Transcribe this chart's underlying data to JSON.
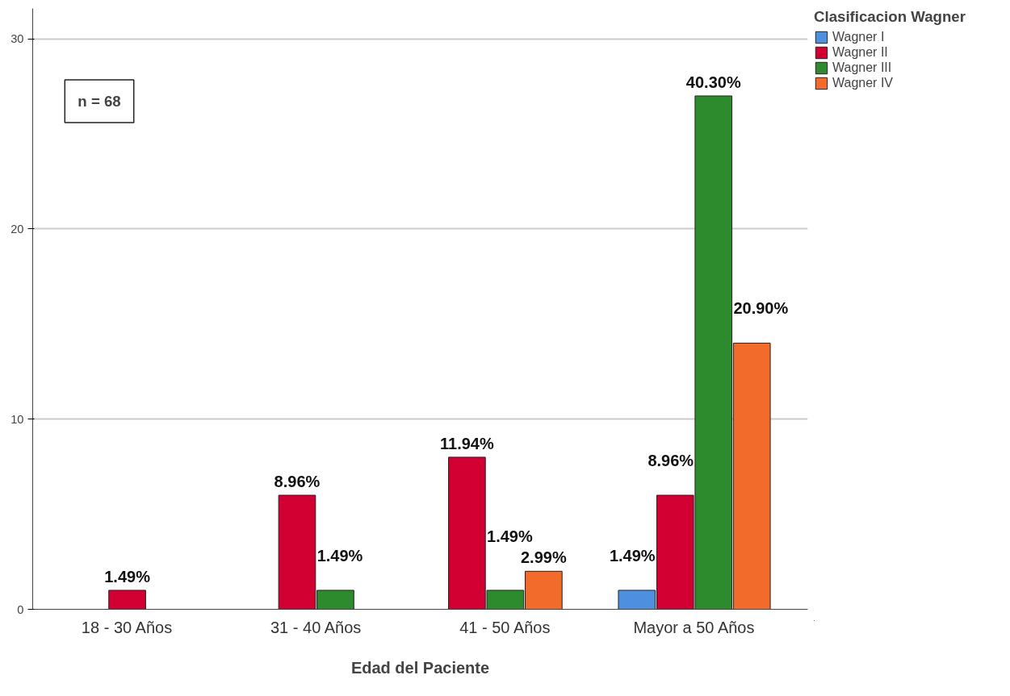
{
  "chart_data": {
    "type": "bar",
    "xlabel": "Edad del Paciente",
    "legend_title": "Clasificacion Wagner",
    "categories": [
      "18 - 30 Años",
      "31 - 40 Años",
      "41 - 50 Años",
      "Mayor a 50 Años"
    ],
    "series": [
      {
        "name": "Wagner I",
        "color": "#4f8fe0",
        "values": [
          null,
          null,
          null,
          1
        ]
      },
      {
        "name": "Wagner II",
        "color": "#d20032",
        "values": [
          1,
          6,
          8,
          6
        ]
      },
      {
        "name": "Wagner III",
        "color": "#2d8a2d",
        "values": [
          null,
          1,
          1,
          27
        ]
      },
      {
        "name": "Wagner IV",
        "color": "#f26b2a",
        "values": [
          null,
          null,
          2,
          14
        ]
      }
    ],
    "ylim": [
      0,
      31.6
    ],
    "yticks": [
      0,
      10,
      20,
      30
    ],
    "grid": "y",
    "legend": "top right",
    "annotations": [
      "n = 68",
      "1.49%",
      "8.96%",
      "1.49%",
      "11.94%",
      "1.49%",
      "2.99%",
      "1.49%",
      "8.96%",
      "40.30%",
      "20.90%"
    ]
  }
}
